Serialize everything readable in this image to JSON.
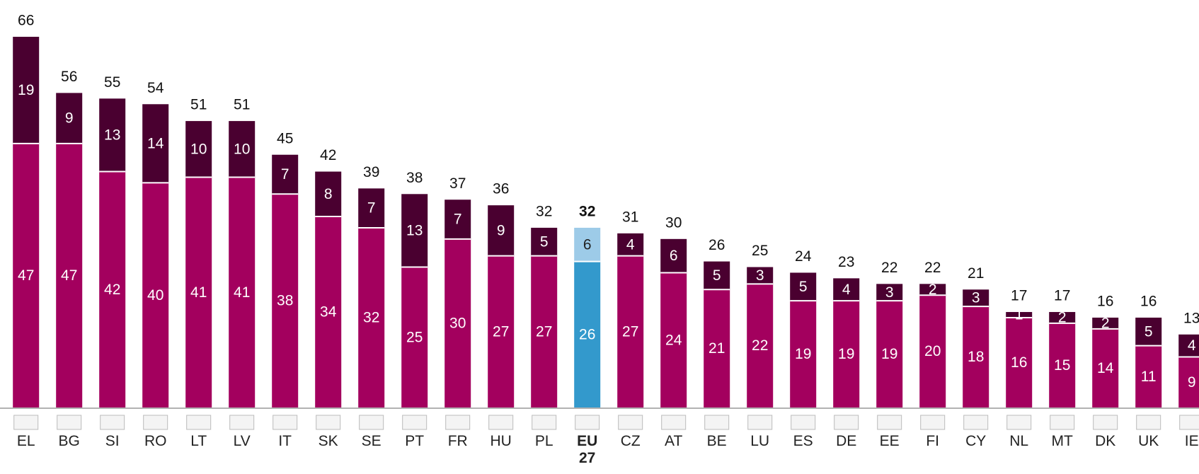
{
  "chart_data": {
    "type": "stacked_bar",
    "categories": [
      "EL",
      "BG",
      "SI",
      "RO",
      "LT",
      "LV",
      "IT",
      "SK",
      "SE",
      "PT",
      "FR",
      "HU",
      "PL",
      "EU 27",
      "CZ",
      "AT",
      "BE",
      "LU",
      "ES",
      "DE",
      "EE",
      "FI",
      "CY",
      "NL",
      "MT",
      "DK",
      "UK",
      "IE"
    ],
    "series": [
      {
        "color": "#a3005e",
        "values": [
          47,
          47,
          42,
          40,
          41,
          41,
          38,
          34,
          32,
          25,
          30,
          27,
          27,
          26,
          27,
          24,
          21,
          22,
          19,
          19,
          19,
          20,
          18,
          16,
          15,
          14,
          11,
          9
        ]
      },
      {
        "color": "#4a0030",
        "values": [
          19,
          9,
          13,
          14,
          10,
          10,
          7,
          8,
          7,
          13,
          7,
          9,
          5,
          6,
          4,
          6,
          5,
          3,
          5,
          4,
          3,
          2,
          3,
          1,
          2,
          2,
          5,
          4
        ]
      }
    ],
    "totals": [
      66,
      56,
      55,
      54,
      51,
      51,
      45,
      42,
      39,
      38,
      37,
      36,
      32,
      32,
      31,
      30,
      26,
      25,
      24,
      23,
      22,
      22,
      21,
      17,
      17,
      16,
      16,
      13
    ],
    "highlight_category": "EU 27",
    "highlight_colors": [
      "#3399cc",
      "#9dcbe8"
    ]
  }
}
